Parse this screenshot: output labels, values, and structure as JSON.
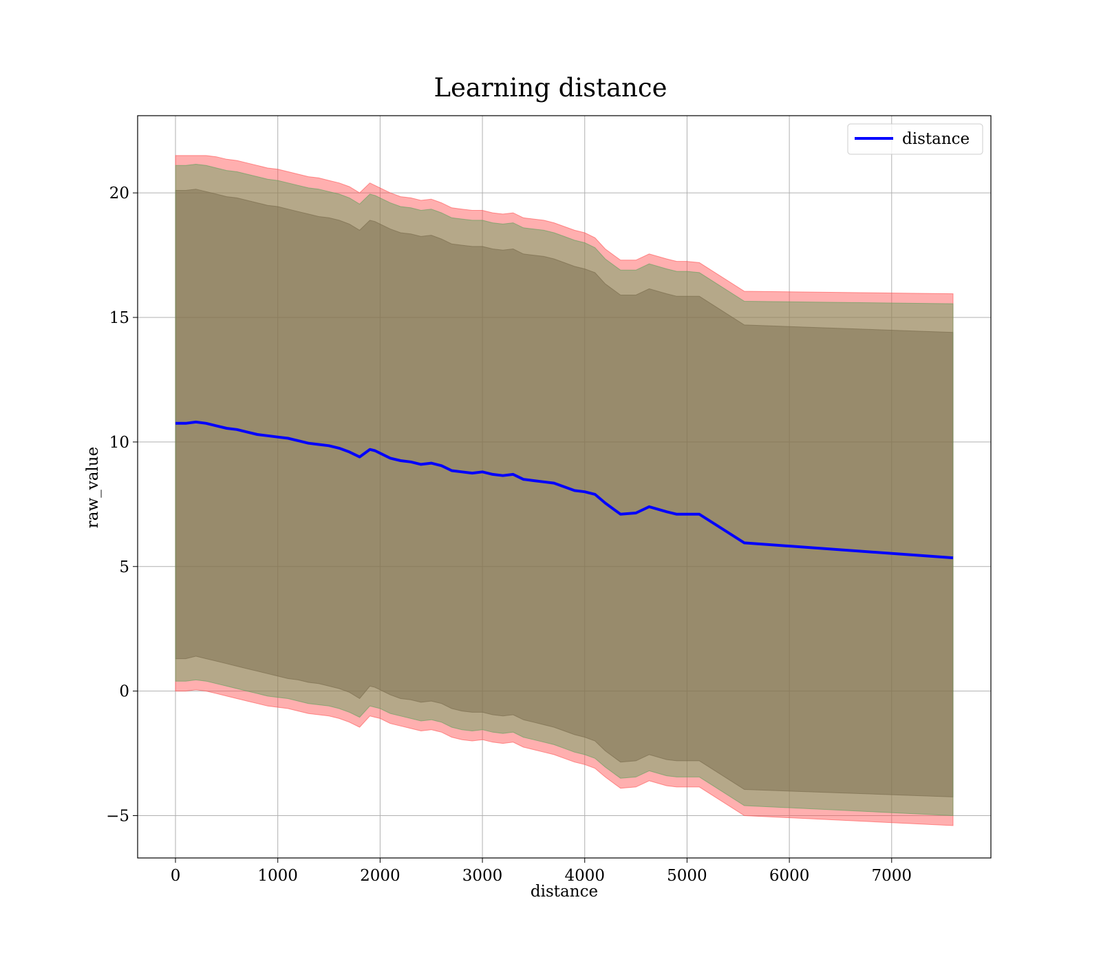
{
  "chart_data": {
    "type": "line",
    "title": "Learning distance",
    "xlabel": "distance",
    "ylabel": "raw_value",
    "xlim": [
      -370,
      7970
    ],
    "ylim": [
      -6.7,
      23.1
    ],
    "xticks": [
      0,
      1000,
      2000,
      3000,
      4000,
      5000,
      6000,
      7000
    ],
    "yticks": [
      -5,
      0,
      5,
      10,
      15,
      20
    ],
    "ytick_labels": [
      "−5",
      "0",
      "5",
      "10",
      "15",
      "20"
    ],
    "grid": true,
    "legend": {
      "position": "top-right",
      "entries": [
        "distance"
      ]
    },
    "x": [
      0,
      100,
      200,
      300,
      400,
      500,
      600,
      700,
      800,
      900,
      1000,
      1100,
      1200,
      1300,
      1400,
      1500,
      1600,
      1700,
      1800,
      1900,
      1950,
      2000,
      2100,
      2200,
      2300,
      2400,
      2500,
      2600,
      2700,
      2800,
      2900,
      3000,
      3100,
      3200,
      3300,
      3400,
      3500,
      3600,
      3700,
      3800,
      3900,
      4000,
      4100,
      4200,
      4300,
      4350,
      4500,
      4630,
      4800,
      4900,
      5000,
      5120,
      5560,
      7600
    ],
    "series": [
      {
        "name": "distance",
        "color": "#0000ff",
        "values": [
          10.75,
          10.75,
          10.8,
          10.75,
          10.65,
          10.55,
          10.5,
          10.4,
          10.3,
          10.25,
          10.2,
          10.15,
          10.05,
          9.95,
          9.9,
          9.85,
          9.75,
          9.6,
          9.4,
          9.7,
          9.65,
          9.55,
          9.35,
          9.25,
          9.2,
          9.1,
          9.15,
          9.05,
          8.85,
          8.8,
          8.75,
          8.8,
          8.7,
          8.65,
          8.7,
          8.5,
          8.45,
          8.4,
          8.35,
          8.2,
          8.05,
          8.0,
          7.9,
          7.55,
          7.25,
          7.1,
          7.15,
          7.4,
          7.2,
          7.1,
          7.1,
          7.1,
          5.95,
          5.35
        ]
      }
    ],
    "bands": [
      {
        "color": "#ff4d4d",
        "upper": [
          21.5,
          21.5,
          21.5,
          21.5,
          21.45,
          21.35,
          21.3,
          21.2,
          21.1,
          21.0,
          20.95,
          20.85,
          20.75,
          20.65,
          20.6,
          20.5,
          20.4,
          20.25,
          20.0,
          20.4,
          20.3,
          20.2,
          20.0,
          19.85,
          19.8,
          19.7,
          19.75,
          19.6,
          19.4,
          19.35,
          19.3,
          19.3,
          19.2,
          19.15,
          19.2,
          19.0,
          18.95,
          18.9,
          18.8,
          18.65,
          18.5,
          18.4,
          18.2,
          17.75,
          17.45,
          17.3,
          17.3,
          17.55,
          17.35,
          17.25,
          17.25,
          17.2,
          16.05,
          15.95
        ],
        "lower": [
          0.0,
          0.0,
          0.05,
          0.0,
          -0.1,
          -0.2,
          -0.3,
          -0.4,
          -0.5,
          -0.6,
          -0.65,
          -0.7,
          -0.8,
          -0.9,
          -0.95,
          -1.0,
          -1.1,
          -1.25,
          -1.45,
          -1.0,
          -1.05,
          -1.1,
          -1.3,
          -1.4,
          -1.5,
          -1.6,
          -1.55,
          -1.65,
          -1.85,
          -1.95,
          -2.0,
          -1.95,
          -2.05,
          -2.1,
          -2.05,
          -2.25,
          -2.35,
          -2.45,
          -2.55,
          -2.7,
          -2.85,
          -2.95,
          -3.1,
          -3.45,
          -3.75,
          -3.9,
          -3.85,
          -3.6,
          -3.8,
          -3.85,
          -3.85,
          -3.85,
          -5.0,
          -5.4
        ]
      },
      {
        "color": "#8b3a3a",
        "upper": [
          20.1,
          20.1,
          20.15,
          20.05,
          19.95,
          19.85,
          19.8,
          19.7,
          19.6,
          19.5,
          19.45,
          19.35,
          19.25,
          19.15,
          19.05,
          19.0,
          18.9,
          18.75,
          18.5,
          18.9,
          18.85,
          18.75,
          18.55,
          18.4,
          18.35,
          18.25,
          18.3,
          18.15,
          17.95,
          17.9,
          17.85,
          17.85,
          17.75,
          17.7,
          17.75,
          17.55,
          17.5,
          17.45,
          17.35,
          17.2,
          17.05,
          16.95,
          16.8,
          16.35,
          16.05,
          15.9,
          15.9,
          16.15,
          15.95,
          15.85,
          15.85,
          15.85,
          14.7,
          14.4
        ],
        "lower": [
          1.3,
          1.3,
          1.4,
          1.3,
          1.2,
          1.1,
          1.0,
          0.9,
          0.8,
          0.7,
          0.6,
          0.5,
          0.45,
          0.35,
          0.3,
          0.2,
          0.1,
          -0.05,
          -0.3,
          0.2,
          0.15,
          0.05,
          -0.15,
          -0.3,
          -0.35,
          -0.45,
          -0.4,
          -0.5,
          -0.7,
          -0.8,
          -0.85,
          -0.85,
          -0.95,
          -1.0,
          -0.95,
          -1.15,
          -1.25,
          -1.35,
          -1.45,
          -1.6,
          -1.75,
          -1.85,
          -2.0,
          -2.4,
          -2.7,
          -2.85,
          -2.8,
          -2.55,
          -2.75,
          -2.8,
          -2.8,
          -2.8,
          -3.95,
          -4.25
        ]
      },
      {
        "color": "#5aa05a",
        "upper": [
          21.1,
          21.1,
          21.15,
          21.1,
          21.0,
          20.9,
          20.85,
          20.75,
          20.65,
          20.55,
          20.5,
          20.4,
          20.3,
          20.2,
          20.15,
          20.05,
          19.95,
          19.8,
          19.55,
          19.95,
          19.9,
          19.8,
          19.6,
          19.45,
          19.4,
          19.3,
          19.35,
          19.2,
          19.0,
          18.95,
          18.9,
          18.9,
          18.8,
          18.75,
          18.8,
          18.6,
          18.55,
          18.5,
          18.4,
          18.25,
          18.1,
          18.0,
          17.8,
          17.35,
          17.05,
          16.9,
          16.9,
          17.15,
          16.95,
          16.85,
          16.85,
          16.8,
          15.65,
          15.55
        ],
        "lower": [
          0.4,
          0.4,
          0.45,
          0.4,
          0.3,
          0.2,
          0.1,
          0.0,
          -0.1,
          -0.2,
          -0.25,
          -0.3,
          -0.4,
          -0.5,
          -0.55,
          -0.6,
          -0.7,
          -0.85,
          -1.05,
          -0.6,
          -0.65,
          -0.7,
          -0.9,
          -1.0,
          -1.1,
          -1.2,
          -1.15,
          -1.25,
          -1.45,
          -1.55,
          -1.6,
          -1.55,
          -1.65,
          -1.7,
          -1.65,
          -1.85,
          -1.95,
          -2.05,
          -2.15,
          -2.3,
          -2.45,
          -2.55,
          -2.7,
          -3.05,
          -3.35,
          -3.5,
          -3.45,
          -3.2,
          -3.4,
          -3.45,
          -3.45,
          -3.45,
          -4.6,
          -5.0
        ]
      }
    ]
  }
}
